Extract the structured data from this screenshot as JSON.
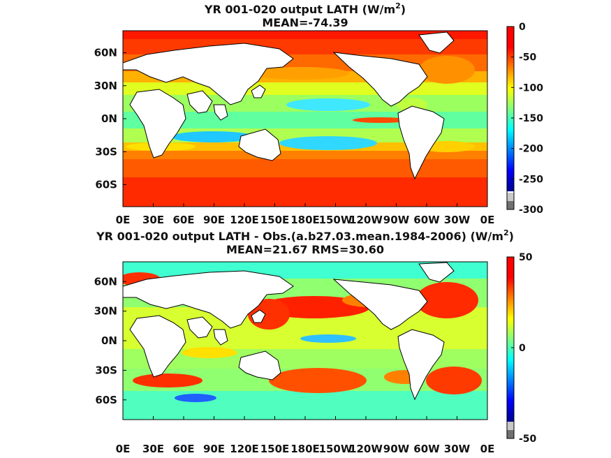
{
  "chart_data": [
    {
      "type": "heatmap",
      "projection": "cylindrical equidistant",
      "title_main": "YR 001-020 output  LATH (W/m",
      "title_sup": "2",
      "title_close": ")",
      "subtitle": "MEAN=-74.39",
      "x_ticks": [
        "0E",
        "30E",
        "60E",
        "90E",
        "120E",
        "150E",
        "180E",
        "150W",
        "120W",
        "90W",
        "60W",
        "30W",
        "0E"
      ],
      "x_range": [
        0,
        360
      ],
      "y_ticks": [
        "60N",
        "30N",
        "0N",
        "30S",
        "60S"
      ],
      "y_tick_values": [
        60,
        30,
        0,
        -30,
        -60
      ],
      "y_range": [
        -80,
        80
      ],
      "colorbar": {
        "range": [
          -300,
          0
        ],
        "tick_values": [
          0,
          -50,
          -100,
          -150,
          -200,
          -250,
          -300
        ],
        "tick_labels": [
          "0",
          "-50",
          "-100",
          "-150",
          "-200",
          "-250",
          "-300"
        ]
      },
      "land_color": "#ffffff"
    },
    {
      "type": "heatmap",
      "projection": "cylindrical equidistant",
      "title_main": "YR 001-020 output LATH - Obs.(a.b27.03.mean.1984-2006) (W/m",
      "title_sup": "2",
      "title_close": ")",
      "subtitle": "MEAN=21.67 RMS=30.60",
      "x_ticks": [
        "0E",
        "30E",
        "60E",
        "90E",
        "120E",
        "150E",
        "180E",
        "150W",
        "120W",
        "90W",
        "60W",
        "30W",
        "0E"
      ],
      "x_range": [
        0,
        360
      ],
      "y_ticks": [
        "60N",
        "30N",
        "0N",
        "30S",
        "60S"
      ],
      "y_tick_values": [
        60,
        30,
        0,
        -30,
        -60
      ],
      "y_range": [
        -80,
        80
      ],
      "colorbar": {
        "range": [
          -50,
          50
        ],
        "tick_values": [
          50,
          0,
          -50
        ],
        "tick_labels": [
          "50",
          "0",
          "-50"
        ]
      },
      "land_color": "#ffffff"
    }
  ]
}
